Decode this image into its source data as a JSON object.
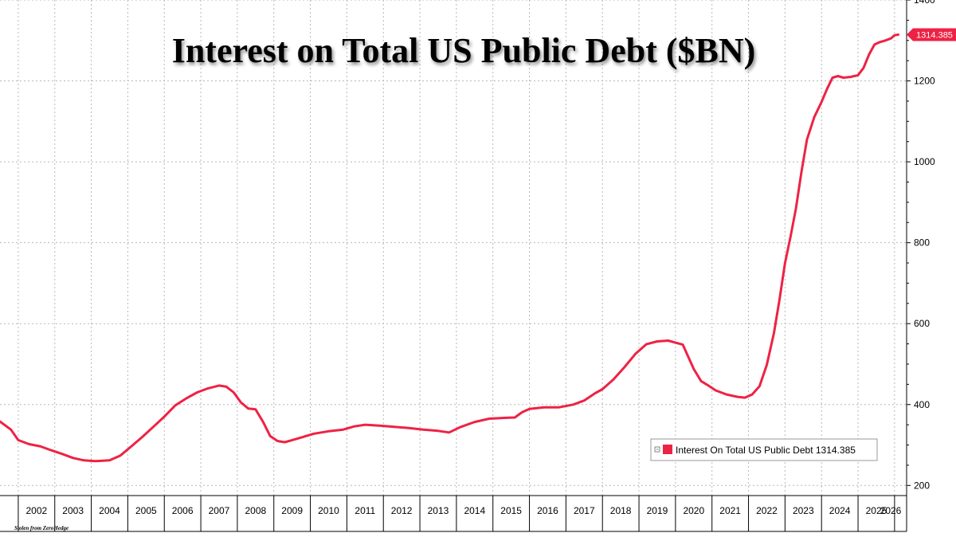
{
  "chart_data": {
    "type": "line",
    "title": "Interest on Total US Public Debt ($BN)",
    "xlabel": "",
    "ylabel": "",
    "x_tick_labels": [
      "2002",
      "2003",
      "2004",
      "2005",
      "2006",
      "2007",
      "2008",
      "2009",
      "2010",
      "2011",
      "2012",
      "2013",
      "2014",
      "2015",
      "2016",
      "2017",
      "2018",
      "2019",
      "2020",
      "2021",
      "2022",
      "2023",
      "2024",
      "2025",
      "2026"
    ],
    "y_ticks": [
      200,
      400,
      600,
      800,
      1000,
      1200,
      1400
    ],
    "xlim": [
      2001.5,
      2026.33
    ],
    "ylim": [
      175,
      1400
    ],
    "grid": true,
    "legend_position": "bottom-right",
    "colors": {
      "series": "#ee2244",
      "grid": "#b8b8b8",
      "background": "#ffffff"
    },
    "last_value_label": "1314.385",
    "series": [
      {
        "name": "Interest On Total US Public Debt",
        "legend_label": "Interest On Total US Public Debt 1314.385",
        "points": [
          [
            2001.5,
            358
          ],
          [
            2001.8,
            338
          ],
          [
            2002.0,
            312
          ],
          [
            2002.3,
            302
          ],
          [
            2002.6,
            297
          ],
          [
            2002.9,
            287
          ],
          [
            2003.2,
            278
          ],
          [
            2003.5,
            268
          ],
          [
            2003.8,
            262
          ],
          [
            2004.1,
            260
          ],
          [
            2004.5,
            262
          ],
          [
            2004.8,
            274
          ],
          [
            2005.1,
            297
          ],
          [
            2005.4,
            320
          ],
          [
            2005.7,
            345
          ],
          [
            2006.0,
            370
          ],
          [
            2006.3,
            398
          ],
          [
            2006.6,
            415
          ],
          [
            2006.9,
            430
          ],
          [
            2007.2,
            440
          ],
          [
            2007.5,
            447
          ],
          [
            2007.7,
            444
          ],
          [
            2007.9,
            430
          ],
          [
            2008.1,
            405
          ],
          [
            2008.3,
            390
          ],
          [
            2008.5,
            388
          ],
          [
            2008.7,
            358
          ],
          [
            2008.9,
            322
          ],
          [
            2009.1,
            310
          ],
          [
            2009.3,
            307
          ],
          [
            2009.5,
            312
          ],
          [
            2009.8,
            320
          ],
          [
            2010.1,
            328
          ],
          [
            2010.5,
            334
          ],
          [
            2010.9,
            338
          ],
          [
            2011.2,
            346
          ],
          [
            2011.5,
            350
          ],
          [
            2011.9,
            348
          ],
          [
            2012.3,
            345
          ],
          [
            2012.7,
            342
          ],
          [
            2013.1,
            338
          ],
          [
            2013.5,
            335
          ],
          [
            2013.8,
            331
          ],
          [
            2014.1,
            344
          ],
          [
            2014.5,
            357
          ],
          [
            2014.9,
            365
          ],
          [
            2015.3,
            367
          ],
          [
            2015.6,
            368
          ],
          [
            2015.8,
            381
          ],
          [
            2016.0,
            389
          ],
          [
            2016.4,
            393
          ],
          [
            2016.8,
            393
          ],
          [
            2017.2,
            400
          ],
          [
            2017.5,
            410
          ],
          [
            2017.8,
            428
          ],
          [
            2018.0,
            438
          ],
          [
            2018.3,
            462
          ],
          [
            2018.6,
            492
          ],
          [
            2018.9,
            525
          ],
          [
            2019.2,
            549
          ],
          [
            2019.5,
            556
          ],
          [
            2019.8,
            558
          ],
          [
            2020.0,
            553
          ],
          [
            2020.2,
            548
          ],
          [
            2020.35,
            518
          ],
          [
            2020.5,
            488
          ],
          [
            2020.7,
            458
          ],
          [
            2020.9,
            447
          ],
          [
            2021.1,
            435
          ],
          [
            2021.4,
            425
          ],
          [
            2021.7,
            419
          ],
          [
            2021.9,
            417
          ],
          [
            2022.1,
            425
          ],
          [
            2022.3,
            445
          ],
          [
            2022.5,
            498
          ],
          [
            2022.7,
            578
          ],
          [
            2022.85,
            660
          ],
          [
            2023.0,
            750
          ],
          [
            2023.15,
            815
          ],
          [
            2023.3,
            885
          ],
          [
            2023.45,
            975
          ],
          [
            2023.6,
            1055
          ],
          [
            2023.8,
            1110
          ],
          [
            2024.0,
            1148
          ],
          [
            2024.15,
            1180
          ],
          [
            2024.3,
            1208
          ],
          [
            2024.45,
            1212
          ],
          [
            2024.6,
            1208
          ],
          [
            2024.8,
            1210
          ],
          [
            2025.0,
            1214
          ],
          [
            2025.15,
            1232
          ],
          [
            2025.3,
            1265
          ],
          [
            2025.45,
            1290
          ],
          [
            2025.6,
            1296
          ],
          [
            2025.75,
            1300
          ],
          [
            2025.9,
            1305
          ],
          [
            2026.0,
            1313
          ],
          [
            2026.1,
            1314.385
          ]
        ]
      }
    ]
  },
  "footer": {
    "credit": "Stolen from ZeroHedge"
  }
}
